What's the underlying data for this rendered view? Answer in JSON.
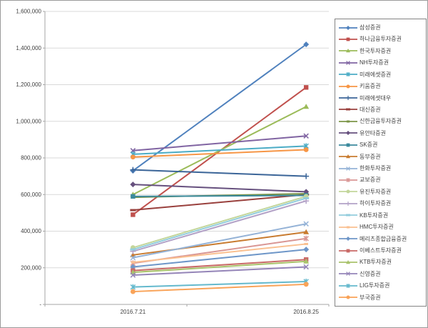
{
  "window": {
    "background": "#FFFFFF",
    "frame_border_color": "#9B9B9B",
    "gridline_color": "#D9D9D9",
    "axis_color": "#A6A6A6",
    "text_color": "#3F3F3F"
  },
  "chart_data": {
    "type": "line",
    "title": "",
    "xlabel": "",
    "ylabel": "",
    "grid": true,
    "legend_position": "right",
    "categories": [
      "2016.7.21",
      "2016.8.25"
    ],
    "y_axis": {
      "min": 0,
      "max": 1600000,
      "step": 200000,
      "tick_labels": [
        "-",
        "200,000",
        "400,000",
        "600,000",
        "800,000",
        "1,000,000",
        "1,200,000",
        "1,400,000",
        "1,600,000"
      ]
    },
    "series": [
      {
        "name": "삼성증권",
        "marker": "diamond",
        "color": "#4F81BD",
        "values": [
          730000,
          1420000
        ]
      },
      {
        "name": "하나금융투자증권",
        "marker": "square",
        "color": "#C0504D",
        "values": [
          490000,
          1185000
        ]
      },
      {
        "name": "한국투자증권",
        "marker": "triangle",
        "color": "#9BBB59",
        "values": [
          600000,
          1080000
        ]
      },
      {
        "name": "NH투자증권",
        "marker": "x",
        "color": "#8064A2",
        "values": [
          840000,
          920000
        ]
      },
      {
        "name": "미래에셋증권",
        "marker": "star",
        "color": "#4BACC6",
        "values": [
          820000,
          865000
        ]
      },
      {
        "name": "키움증권",
        "marker": "circle",
        "color": "#F79646",
        "values": [
          805000,
          845000
        ]
      },
      {
        "name": "미래에셋대우",
        "marker": "plus",
        "color": "#3B6598",
        "values": [
          735000,
          700000
        ]
      },
      {
        "name": "대신증권",
        "marker": "dash",
        "color": "#99403D",
        "values": [
          515000,
          600000
        ]
      },
      {
        "name": "신한금융투자증권",
        "marker": "dot",
        "color": "#7B9447",
        "values": [
          585000,
          605000
        ]
      },
      {
        "name": "유안타증권",
        "marker": "diamond",
        "color": "#66507E",
        "values": [
          655000,
          615000
        ]
      },
      {
        "name": "SK증권",
        "marker": "square",
        "color": "#3B8A9D",
        "values": [
          590000,
          595000
        ]
      },
      {
        "name": "동부증권",
        "marker": "triangle",
        "color": "#C87B2F",
        "values": [
          270000,
          395000
        ]
      },
      {
        "name": "한화투자증권",
        "marker": "x",
        "color": "#95B3D7",
        "values": [
          255000,
          440000
        ]
      },
      {
        "name": "교보증권",
        "marker": "star",
        "color": "#D99694",
        "values": [
          225000,
          360000
        ]
      },
      {
        "name": "유진투자증권",
        "marker": "circle",
        "color": "#C3D69B",
        "values": [
          310000,
          590000
        ]
      },
      {
        "name": "하이투자증권",
        "marker": "plus",
        "color": "#B3A2C7",
        "values": [
          290000,
          565000
        ]
      },
      {
        "name": "KB투자증권",
        "marker": "dash",
        "color": "#93CDDD",
        "values": [
          300000,
          580000
        ]
      },
      {
        "name": "HMC투자증권",
        "marker": "dot",
        "color": "#FAC090",
        "values": [
          230000,
          330000
        ]
      },
      {
        "name": "메리츠종합금융증권",
        "marker": "diamond",
        "color": "#6E96C8",
        "values": [
          205000,
          300000
        ]
      },
      {
        "name": "이베스트투자증권",
        "marker": "square",
        "color": "#C96A67",
        "values": [
          185000,
          245000
        ]
      },
      {
        "name": "KTB투자증권",
        "marker": "triangle",
        "color": "#A9C36C",
        "values": [
          175000,
          235000
        ]
      },
      {
        "name": "신영증권",
        "marker": "x",
        "color": "#9585B8",
        "values": [
          160000,
          205000
        ]
      },
      {
        "name": "LIG투자증권",
        "marker": "star",
        "color": "#64B9CD",
        "values": [
          95000,
          125000
        ]
      },
      {
        "name": "부국증권",
        "marker": "circle",
        "color": "#F9A358",
        "values": [
          70000,
          110000
        ]
      }
    ]
  }
}
